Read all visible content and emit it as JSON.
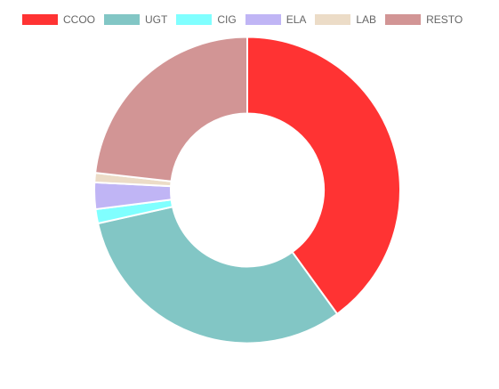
{
  "chart_data": {
    "type": "pie",
    "variant": "doughnut",
    "title": "",
    "legend_position": "top",
    "categories": [
      "CCOO",
      "UGT",
      "CIG",
      "ELA",
      "LAB",
      "RESTO"
    ],
    "values": [
      40.0,
      31.5,
      1.5,
      2.8,
      1.0,
      23.2
    ],
    "colors": [
      "#ff3333",
      "#82c6c5",
      "#80ffff",
      "#c0b5f5",
      "#ecdcc7",
      "#d29595"
    ]
  }
}
